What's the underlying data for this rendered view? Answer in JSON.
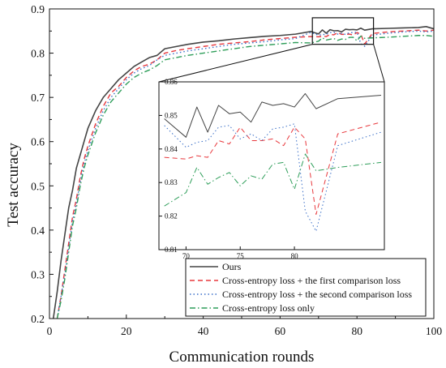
{
  "chart_data": {
    "type": "line",
    "title": "",
    "xlabel": "Communication rounds",
    "ylabel": "Test accuracy",
    "xlim": [
      0,
      100
    ],
    "ylim": [
      0.2,
      0.9
    ],
    "x_ticks": [
      "0",
      "20",
      "40",
      "60",
      "80",
      "100"
    ],
    "y_ticks": [
      "0.2",
      "0.3",
      "0.4",
      "0.5",
      "0.6",
      "0.7",
      "0.8",
      "0.9"
    ],
    "grid": false,
    "legend_position": "bottom-right",
    "series": [
      {
        "name": "Ours",
        "color": "#444444",
        "dash": "solid",
        "x": [
          1,
          2,
          3,
          4,
          5,
          6,
          7,
          8,
          9,
          10,
          12,
          14,
          16,
          18,
          20,
          22,
          24,
          26,
          28,
          30,
          33,
          36,
          40,
          44,
          48,
          52,
          56,
          60,
          64,
          68,
          70,
          71,
          72,
          73,
          74,
          75,
          76,
          77,
          78,
          79,
          80,
          81,
          82,
          84,
          88,
          92,
          96,
          98,
          100
        ],
        "y": [
          0.2,
          0.26,
          0.33,
          0.39,
          0.45,
          0.49,
          0.54,
          0.57,
          0.6,
          0.63,
          0.67,
          0.7,
          0.72,
          0.74,
          0.755,
          0.77,
          0.78,
          0.79,
          0.795,
          0.81,
          0.815,
          0.82,
          0.825,
          0.828,
          0.832,
          0.835,
          0.838,
          0.84,
          0.843,
          0.849,
          0.8435,
          0.8525,
          0.845,
          0.853,
          0.8505,
          0.851,
          0.848,
          0.854,
          0.853,
          0.8535,
          0.8525,
          0.8565,
          0.852,
          0.855,
          0.856,
          0.857,
          0.858,
          0.86,
          0.855
        ]
      },
      {
        "name": "Cross-entropy loss + the first comparison loss",
        "color": "#e8383d",
        "dash": "6,4",
        "x": [
          2,
          3,
          4,
          5,
          6,
          7,
          8,
          9,
          10,
          12,
          14,
          16,
          18,
          20,
          22,
          24,
          26,
          28,
          30,
          33,
          36,
          40,
          44,
          48,
          52,
          56,
          60,
          64,
          68,
          70,
          71,
          72,
          73,
          74,
          75,
          76,
          77,
          78,
          79,
          80,
          81,
          82,
          84,
          88,
          92,
          96,
          98,
          100
        ],
        "y": [
          0.2,
          0.25,
          0.31,
          0.37,
          0.43,
          0.47,
          0.52,
          0.56,
          0.59,
          0.64,
          0.68,
          0.71,
          0.725,
          0.745,
          0.76,
          0.77,
          0.775,
          0.785,
          0.8,
          0.806,
          0.81,
          0.815,
          0.82,
          0.823,
          0.826,
          0.83,
          0.833,
          0.836,
          0.8375,
          0.837,
          0.838,
          0.8375,
          0.8425,
          0.8415,
          0.8465,
          0.8425,
          0.8425,
          0.843,
          0.841,
          0.8465,
          0.843,
          0.8205,
          0.8445,
          0.848,
          0.85,
          0.852,
          0.85,
          0.852
        ]
      },
      {
        "name": "Cross-entropy loss + the second comparison loss",
        "color": "#3a6fc8",
        "dash": "1.5,3",
        "x": [
          2,
          3,
          4,
          5,
          6,
          7,
          8,
          9,
          10,
          12,
          14,
          16,
          18,
          20,
          22,
          24,
          26,
          28,
          30,
          33,
          36,
          40,
          44,
          48,
          52,
          56,
          60,
          64,
          68,
          70,
          71,
          72,
          73,
          74,
          75,
          76,
          77,
          78,
          79,
          80,
          81,
          82,
          84,
          88,
          92,
          96,
          98,
          100
        ],
        "y": [
          0.2,
          0.25,
          0.3,
          0.36,
          0.42,
          0.46,
          0.51,
          0.55,
          0.58,
          0.63,
          0.67,
          0.7,
          0.72,
          0.74,
          0.755,
          0.765,
          0.772,
          0.785,
          0.795,
          0.8,
          0.805,
          0.81,
          0.815,
          0.82,
          0.823,
          0.826,
          0.83,
          0.833,
          0.847,
          0.8405,
          0.842,
          0.8425,
          0.8465,
          0.847,
          0.843,
          0.8445,
          0.8425,
          0.846,
          0.8465,
          0.8475,
          0.8215,
          0.8155,
          0.841,
          0.845,
          0.848,
          0.85,
          0.848,
          0.85
        ]
      },
      {
        "name": "Cross-entropy loss only",
        "color": "#2f9e5a",
        "dash": "7,3,1.5,3",
        "x": [
          2,
          3,
          4,
          5,
          6,
          7,
          8,
          9,
          10,
          12,
          14,
          16,
          18,
          20,
          22,
          24,
          26,
          28,
          30,
          33,
          36,
          40,
          44,
          48,
          52,
          56,
          60,
          64,
          68,
          70,
          71,
          72,
          73,
          74,
          75,
          76,
          77,
          78,
          79,
          80,
          81,
          82,
          84,
          88,
          92,
          96,
          98,
          100
        ],
        "y": [
          0.2,
          0.24,
          0.29,
          0.35,
          0.41,
          0.45,
          0.5,
          0.54,
          0.57,
          0.62,
          0.66,
          0.69,
          0.71,
          0.73,
          0.745,
          0.755,
          0.762,
          0.772,
          0.785,
          0.79,
          0.795,
          0.8,
          0.805,
          0.81,
          0.815,
          0.818,
          0.821,
          0.824,
          0.823,
          0.827,
          0.8345,
          0.8295,
          0.8315,
          0.833,
          0.829,
          0.832,
          0.831,
          0.8355,
          0.836,
          0.828,
          0.8385,
          0.8335,
          0.8345,
          0.836,
          0.838,
          0.84,
          0.84,
          0.838
        ]
      }
    ],
    "inset": {
      "xlim": [
        67.5,
        88.3
      ],
      "ylim": [
        0.81,
        0.86
      ],
      "x_ticks": [
        "70",
        "75",
        "80"
      ],
      "y_ticks": [
        "0.81",
        "0.82",
        "0.83",
        "0.84",
        "0.85",
        "0.86"
      ],
      "zoom_region": {
        "x": [
          68.4,
          84.3
        ],
        "y": [
          0.82,
          0.88
        ]
      }
    }
  }
}
